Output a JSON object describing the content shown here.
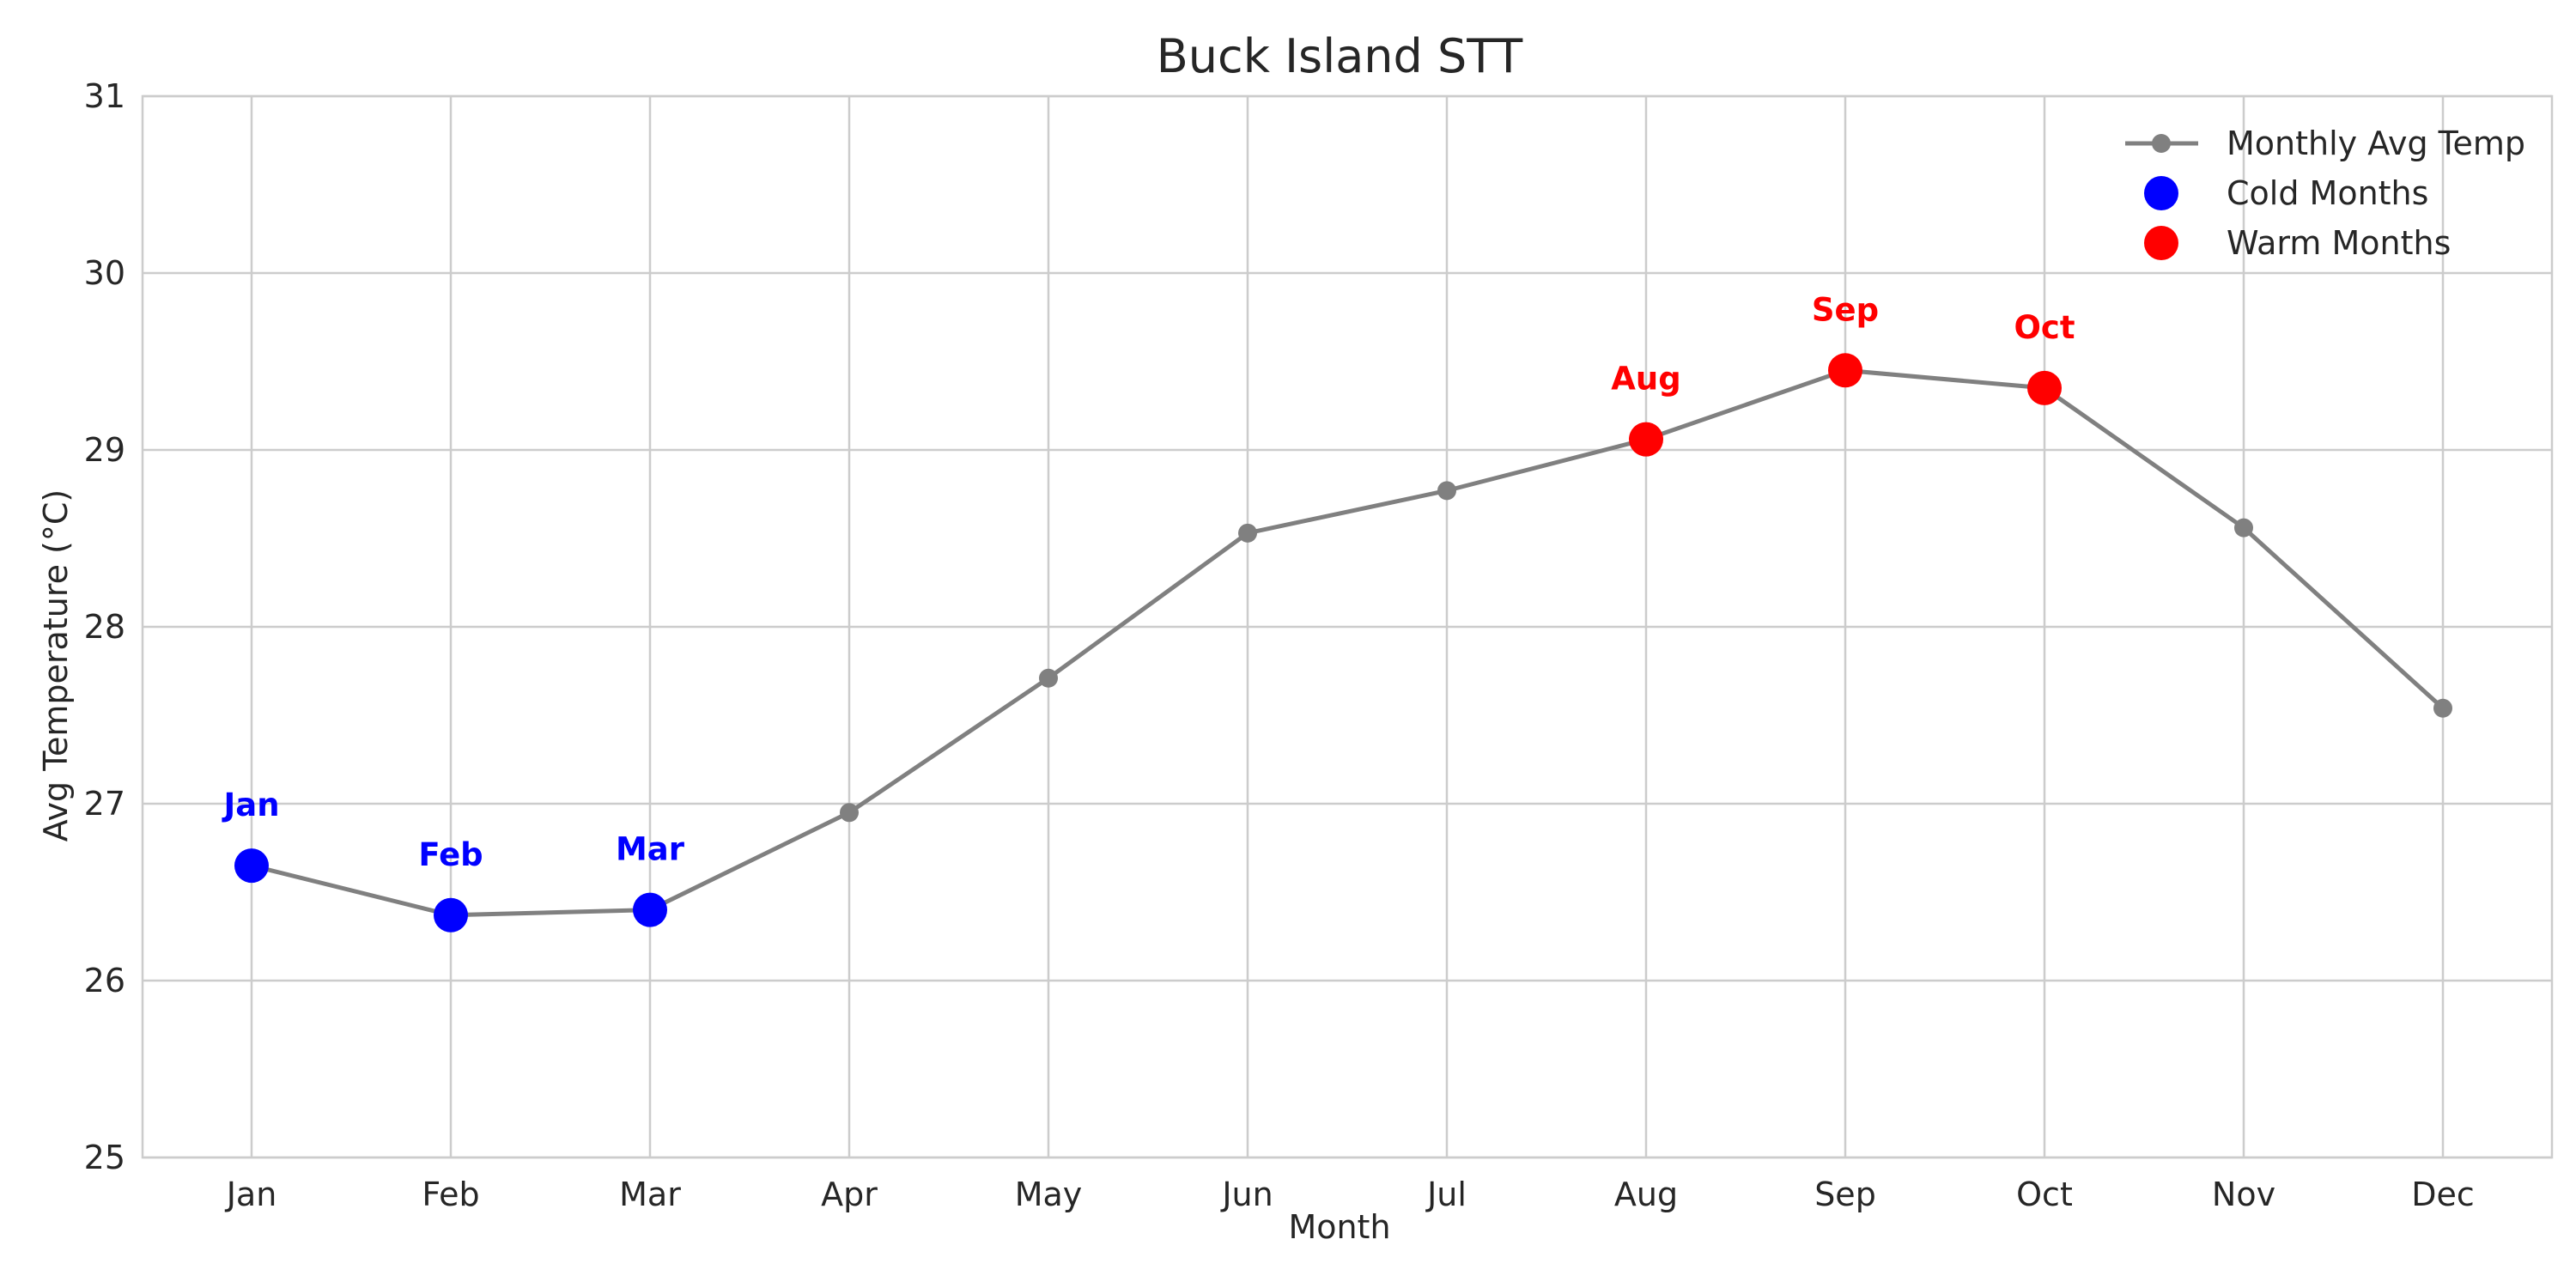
{
  "chart_data": {
    "type": "line",
    "title": "Buck Island STT",
    "xlabel": "Month",
    "ylabel": "Avg Temperature (°C)",
    "ylim": [
      25,
      31
    ],
    "yticks": [
      25,
      26,
      27,
      28,
      29,
      30,
      31
    ],
    "grid": true,
    "legend_position": "top-right",
    "categories": [
      "Jan",
      "Feb",
      "Mar",
      "Apr",
      "May",
      "Jun",
      "Jul",
      "Aug",
      "Sep",
      "Oct",
      "Nov",
      "Dec"
    ],
    "series": [
      {
        "name": "Monthly Avg Temp",
        "color": "#808080",
        "values": [
          26.65,
          26.37,
          26.4,
          26.95,
          27.71,
          28.53,
          28.77,
          29.06,
          29.45,
          29.35,
          28.56,
          27.54
        ]
      }
    ],
    "highlights": [
      {
        "name": "Cold Months",
        "color": "#0000ff",
        "months": [
          "Jan",
          "Feb",
          "Mar"
        ]
      },
      {
        "name": "Warm Months",
        "color": "#ff0000",
        "months": [
          "Aug",
          "Sep",
          "Oct"
        ]
      }
    ]
  }
}
